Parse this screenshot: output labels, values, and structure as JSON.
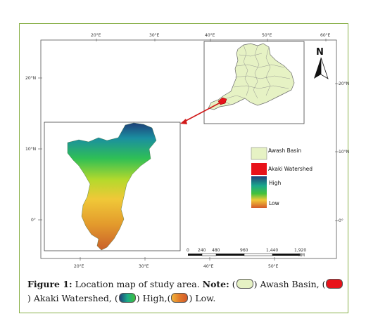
{
  "map": {
    "top_lon_ticks": [
      "20°E",
      "30°E",
      "40°E",
      "50°E",
      "60°E"
    ],
    "bottom_lon_ticks": [
      "20°E",
      "30°E",
      "40°E",
      "50°E"
    ],
    "left_lat_ticks": [
      "20°N",
      "10°N",
      "0°"
    ],
    "right_lat_ticks": [
      "20°N",
      "10°N",
      "0°"
    ],
    "north_label": "N",
    "scale_labels": [
      "0",
      "240",
      "480",
      "960",
      "1,440",
      "1,920"
    ],
    "scale_unit": "KM",
    "legend": {
      "basin": "Awash Basin",
      "akaki": "Akaki Watershed",
      "high": "High",
      "low": "Low"
    },
    "colors": {
      "basin_fill": "#e6f2c4",
      "akaki_fill": "#e8121a",
      "frame_border": "#8ab14a",
      "arrow": "#d11a1a"
    }
  },
  "caption": {
    "label": "Figure 1:",
    "text1": " Location map of study area. ",
    "note": "Note:",
    "basin": " Awash Basin, ",
    "akaki": " Akaki Watershed, ",
    "high": " High,",
    "low": " Low."
  }
}
